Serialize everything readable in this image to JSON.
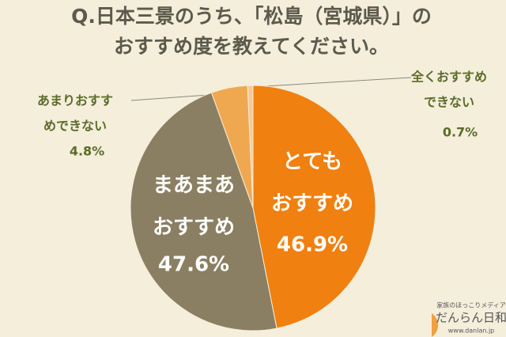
{
  "chart_data": {
    "type": "pie",
    "title": [
      "Q.日本三景のうち、「松島（宮城県）」の",
      "おすすめ度を教えてください。"
    ],
    "categories": [
      [
        "とても",
        "おすすめ"
      ],
      [
        "まあまあ",
        "おすすめ"
      ],
      [
        "あまりおすす",
        "めできない"
      ],
      [
        "全くおすすめ",
        "できない"
      ]
    ],
    "values": [
      46.9,
      47.6,
      4.8,
      0.7
    ],
    "value_labels": [
      "46.9%",
      "47.6%",
      "4.8%",
      "0.7%"
    ],
    "colors": [
      "#f0800f",
      "#8a7f62",
      "#f0a850",
      "#f7c99a"
    ],
    "logo": [
      "家族のほっこりメディア",
      "だんらん日和",
      "www.danlan.jp"
    ]
  }
}
